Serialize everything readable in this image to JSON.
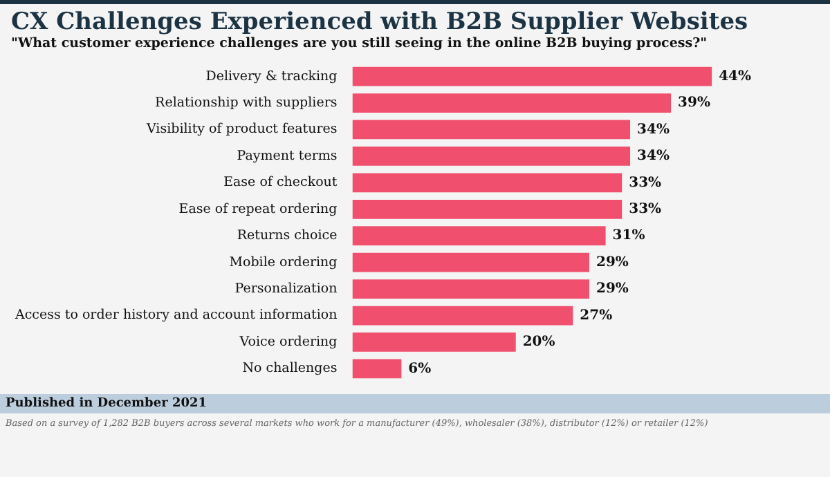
{
  "chart_data": {
    "type": "bar",
    "orientation": "horizontal",
    "title": "CX Challenges Experienced with B2B Supplier Websites",
    "subtitle": "\"What customer experience challenges are you still seeing in the online B2B buying process?\"",
    "categories": [
      "Delivery & tracking",
      "Relationship with suppliers",
      "Visibility of product features",
      "Payment terms",
      "Ease of checkout",
      "Ease of repeat ordering",
      "Returns choice",
      "Mobile ordering",
      "Personalization",
      "Access to order history and account information",
      "Voice ordering",
      "No challenges"
    ],
    "values": [
      44,
      39,
      34,
      34,
      33,
      33,
      31,
      29,
      29,
      27,
      20,
      6
    ],
    "value_labels": [
      "44%",
      "39%",
      "34%",
      "34%",
      "33%",
      "33%",
      "31%",
      "29%",
      "29%",
      "27%",
      "20%",
      "6%"
    ],
    "color": "#f0506e",
    "tick_labels": "y",
    "annotations": [
      "Published in December 2021",
      "Based on a survey of 1,282 B2B buyers across several markets who work for a manufacturer (49%), wholesaler (38%), distributor (12%) or retailer (12%)"
    ]
  }
}
